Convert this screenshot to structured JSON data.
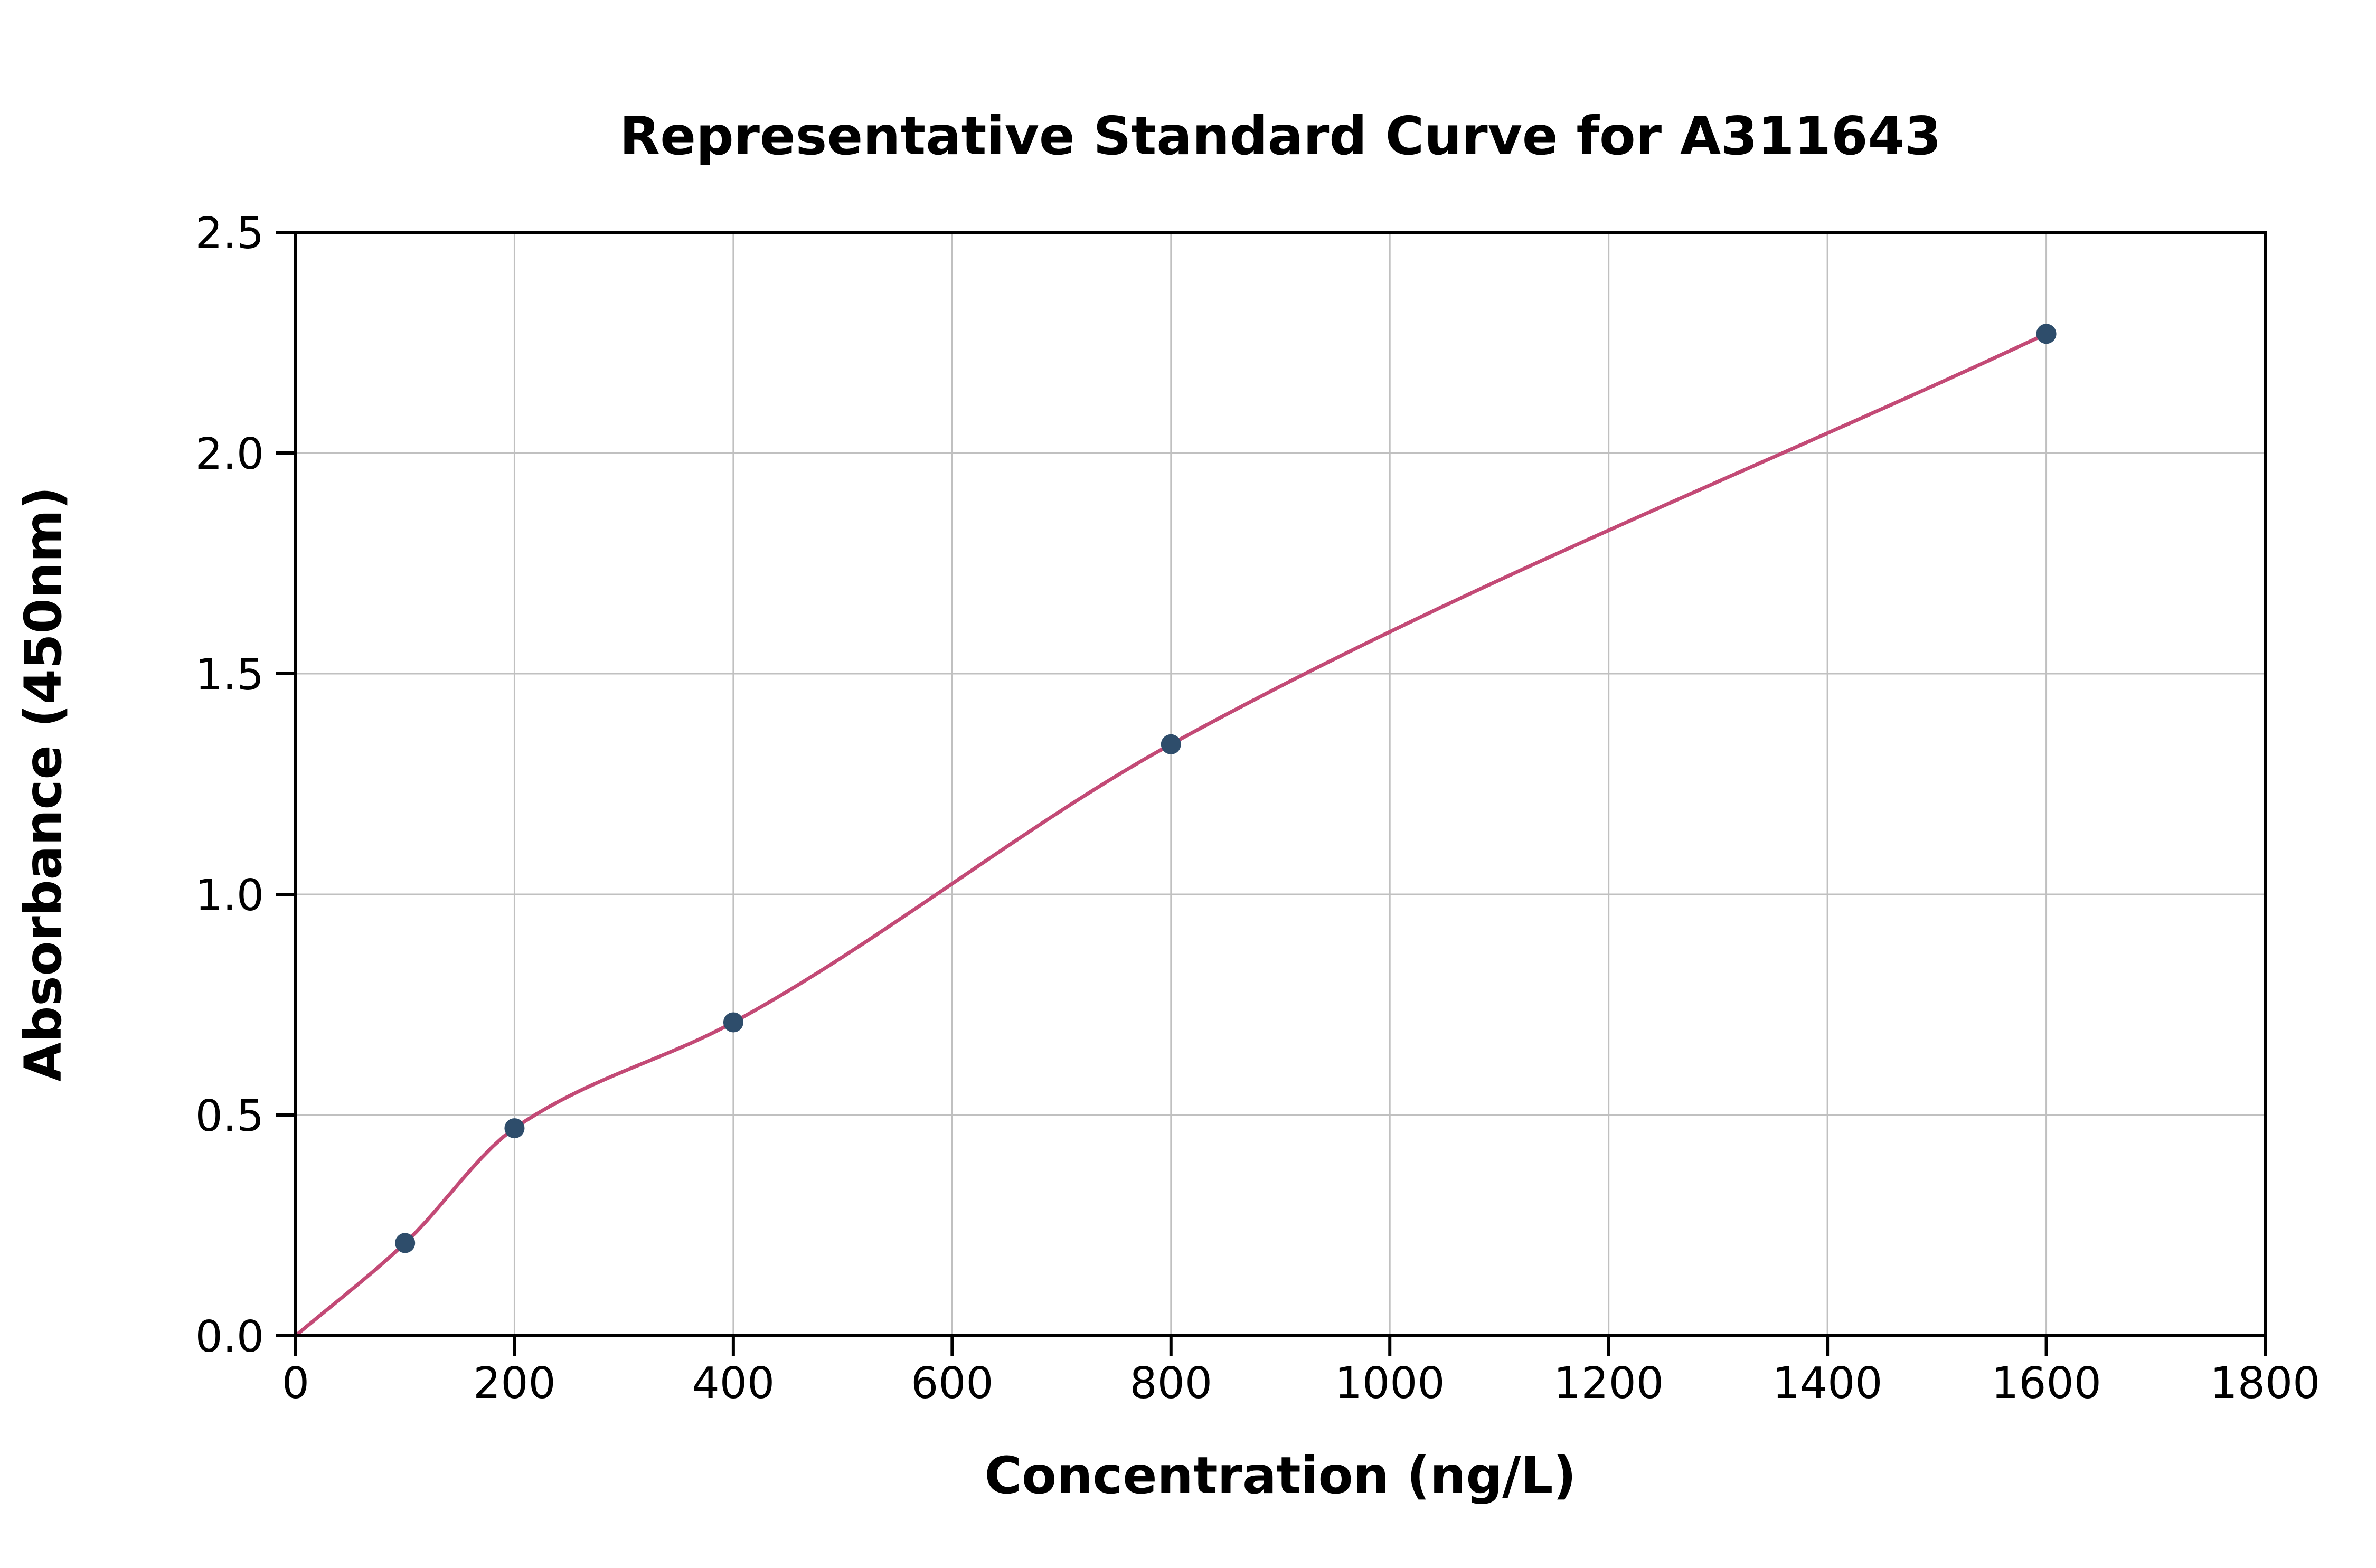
{
  "chart_data": {
    "type": "scatter",
    "title": "Representative Standard Curve for A311643",
    "xlabel": "Concentration (ng/L)",
    "ylabel": "Absorbance (450nm)",
    "xlim": [
      0,
      1800
    ],
    "ylim": [
      0,
      2.5
    ],
    "grid": true,
    "legend_position": "none",
    "xtick_values": [
      0,
      200,
      400,
      600,
      800,
      1000,
      1200,
      1400,
      1600,
      1800
    ],
    "xtick_labels": [
      "0",
      "200",
      "400",
      "600",
      "800",
      "1000",
      "1200",
      "1400",
      "1600",
      "1800"
    ],
    "ytick_values": [
      0.0,
      0.5,
      1.0,
      1.5,
      2.0,
      2.5
    ],
    "ytick_labels": [
      "0.0",
      "0.5",
      "1.0",
      "1.5",
      "2.0",
      "2.5"
    ],
    "points": [
      {
        "x": 100,
        "y": 0.21
      },
      {
        "x": 200,
        "y": 0.47
      },
      {
        "x": 400,
        "y": 0.71
      },
      {
        "x": 800,
        "y": 1.34
      },
      {
        "x": 1600,
        "y": 2.27
      }
    ],
    "fit_curve": {
      "type": "smooth-through-points",
      "anchors": [
        [
          0,
          0.0
        ],
        [
          100,
          0.21
        ],
        [
          200,
          0.47
        ],
        [
          400,
          0.71
        ],
        [
          800,
          1.34
        ],
        [
          1600,
          2.27
        ]
      ]
    },
    "colors": {
      "curve": "#c34a76",
      "marker": "#2e4d6b",
      "grid": "#c0c0c0",
      "axis": "#000000",
      "background": "#ffffff"
    }
  }
}
